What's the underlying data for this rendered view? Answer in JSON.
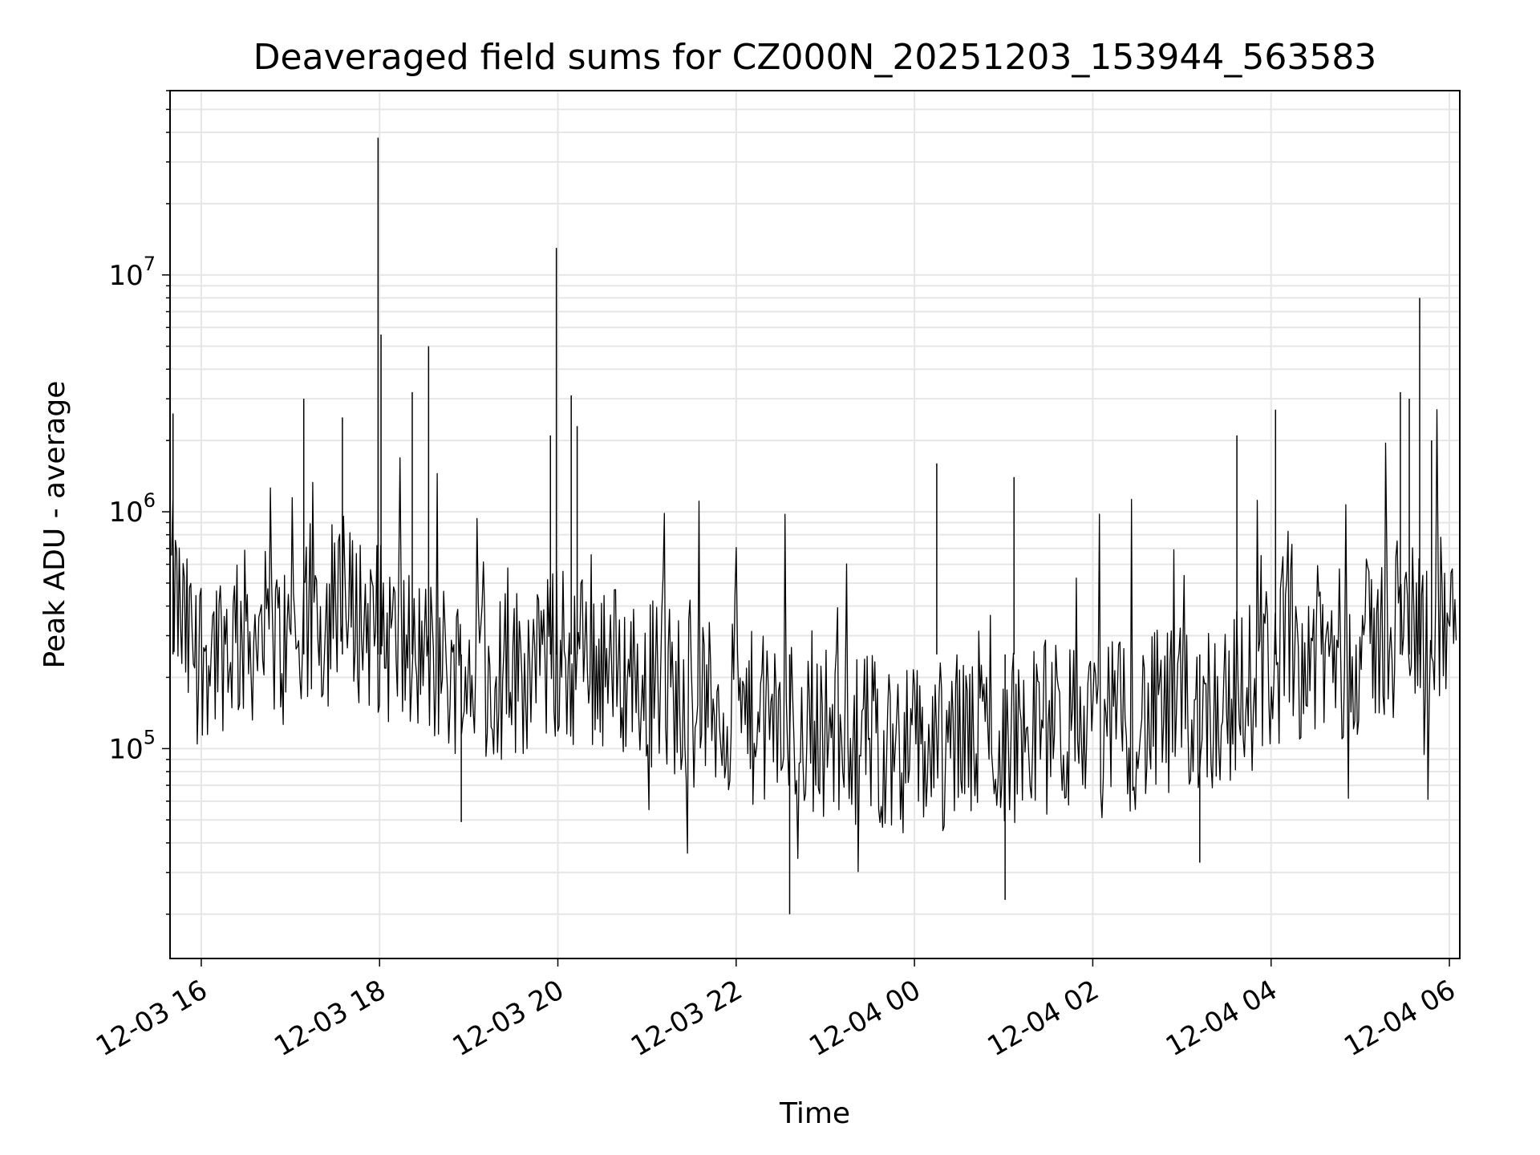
{
  "chart_data": {
    "type": "line",
    "title": "Deaveraged field sums for CZ000N_20251203_153944_563583",
    "xlabel": "Time",
    "ylabel": "Peak ADU - average",
    "x_ticks": [
      "12-03 16",
      "12-03 18",
      "12-03 20",
      "12-03 22",
      "12-04 00",
      "12-04 02",
      "12-04 04",
      "12-04 06"
    ],
    "x_range": [
      "2025-12-03 15:39",
      "2025-12-04 06:07"
    ],
    "y_scale": "log",
    "y_ticks": [
      "10^5",
      "10^6",
      "10^7"
    ],
    "ylim": [
      13000,
      60000000
    ],
    "grid": true,
    "series": [
      {
        "color": "#000000",
        "x": [
          "2025-12-03 15:40",
          "2025-12-03 15:50",
          "2025-12-03 16:00",
          "2025-12-03 16:15",
          "2025-12-03 16:30",
          "2025-12-03 16:45",
          "2025-12-03 17:00",
          "2025-12-03 17:15",
          "2025-12-03 17:30",
          "2025-12-03 17:45",
          "2025-12-03 18:00",
          "2025-12-03 18:15",
          "2025-12-03 18:30",
          "2025-12-03 18:45",
          "2025-12-03 19:00",
          "2025-12-03 19:15",
          "2025-12-03 19:30",
          "2025-12-03 19:45",
          "2025-12-03 20:00",
          "2025-12-03 20:15",
          "2025-12-03 20:30",
          "2025-12-03 20:45",
          "2025-12-03 21:00",
          "2025-12-03 21:15",
          "2025-12-03 21:30",
          "2025-12-03 21:45",
          "2025-12-03 22:00",
          "2025-12-03 22:15",
          "2025-12-03 22:30",
          "2025-12-03 22:45",
          "2025-12-03 23:00",
          "2025-12-03 23:15",
          "2025-12-03 23:30",
          "2025-12-03 23:45",
          "2025-12-04 00:00",
          "2025-12-04 00:15",
          "2025-12-04 00:30",
          "2025-12-04 00:45",
          "2025-12-04 01:00",
          "2025-12-04 01:15",
          "2025-12-04 01:30",
          "2025-12-04 01:45",
          "2025-12-04 02:00",
          "2025-12-04 02:15",
          "2025-12-04 02:30",
          "2025-12-04 02:45",
          "2025-12-04 03:00",
          "2025-12-04 03:15",
          "2025-12-04 03:30",
          "2025-12-04 03:45",
          "2025-12-04 04:00",
          "2025-12-04 04:15",
          "2025-12-04 04:30",
          "2025-12-04 04:45",
          "2025-12-04 05:00",
          "2025-12-04 05:15",
          "2025-12-04 05:30",
          "2025-12-04 05:45",
          "2025-12-04 06:00",
          "2025-12-04 06:05"
        ],
        "y": [
          500000,
          280000,
          260000,
          280000,
          300000,
          290000,
          260000,
          330000,
          360000,
          370000,
          320000,
          260000,
          240000,
          220000,
          210000,
          200000,
          210000,
          230000,
          250000,
          240000,
          230000,
          210000,
          200000,
          180000,
          160000,
          150000,
          140000,
          130000,
          125000,
          120000,
          120000,
          115000,
          110000,
          105000,
          100000,
          100000,
          110000,
          115000,
          110000,
          120000,
          125000,
          120000,
          115000,
          125000,
          130000,
          135000,
          140000,
          150000,
          160000,
          180000,
          230000,
          260000,
          250000,
          250000,
          260000,
          300000,
          330000,
          350000,
          320000,
          400000
        ],
        "spikes": [
          {
            "x": "2025-12-03 15:41",
            "y": 2600000
          },
          {
            "x": "2025-12-03 17:09",
            "y": 3000000
          },
          {
            "x": "2025-12-03 17:35",
            "y": 2500000
          },
          {
            "x": "2025-12-03 17:59",
            "y": 38000000
          },
          {
            "x": "2025-12-03 18:01",
            "y": 5600000
          },
          {
            "x": "2025-12-03 18:22",
            "y": 3200000
          },
          {
            "x": "2025-12-03 18:33",
            "y": 5000000
          },
          {
            "x": "2025-12-03 19:55",
            "y": 2100000
          },
          {
            "x": "2025-12-03 19:59",
            "y": 13000000
          },
          {
            "x": "2025-12-03 20:09",
            "y": 3100000
          },
          {
            "x": "2025-12-03 20:13",
            "y": 2300000
          },
          {
            "x": "2025-12-04 00:15",
            "y": 1600000
          },
          {
            "x": "2025-12-04 01:07",
            "y": 1400000
          },
          {
            "x": "2025-12-04 03:37",
            "y": 2100000
          },
          {
            "x": "2025-12-04 04:03",
            "y": 2700000
          },
          {
            "x": "2025-12-04 05:27",
            "y": 3200000
          },
          {
            "x": "2025-12-04 05:33",
            "y": 3000000
          },
          {
            "x": "2025-12-04 05:40",
            "y": 8000000
          },
          {
            "x": "2025-12-04 05:48",
            "y": 2000000
          },
          {
            "x": "2025-12-03 22:36",
            "y": 20000
          },
          {
            "x": "2025-12-04 01:01",
            "y": 23000
          },
          {
            "x": "2025-12-03 18:55",
            "y": 49000
          },
          {
            "x": "2025-12-04 03:12",
            "y": 33000
          }
        ]
      }
    ]
  }
}
